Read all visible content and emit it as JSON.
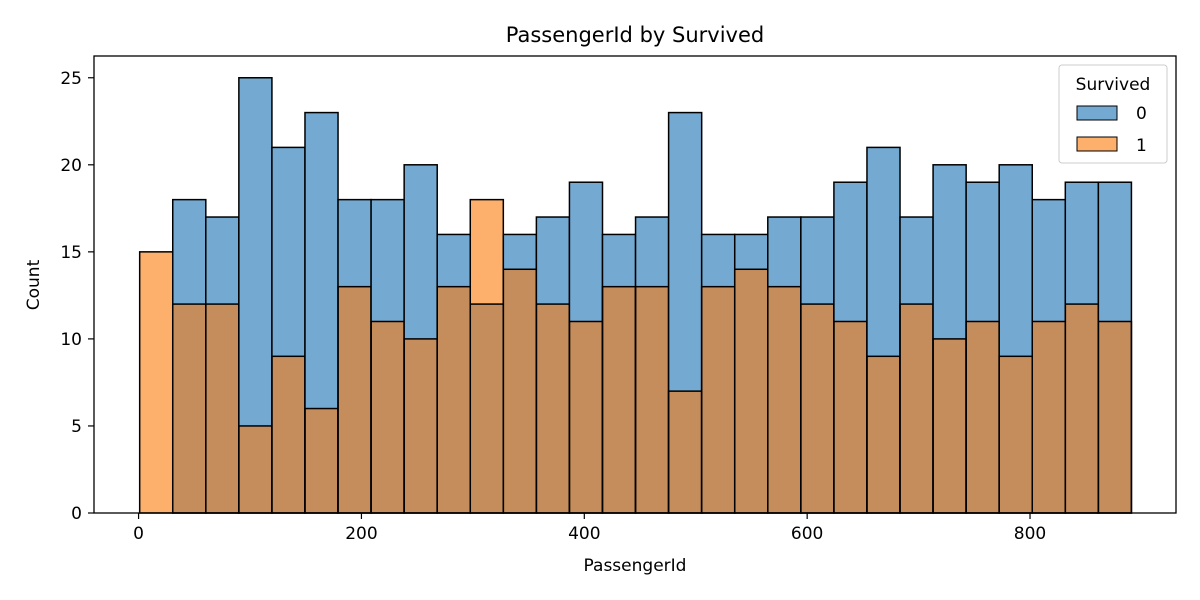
{
  "chart_data": {
    "type": "bar",
    "subtype": "overlaid-histogram",
    "title": "PassengerId by Survived",
    "xlabel": "PassengerId",
    "ylabel": "Count",
    "xlim": [
      -40,
      931
    ],
    "ylim": [
      0,
      26.25
    ],
    "xticks": [
      0,
      200,
      400,
      600,
      800
    ],
    "yticks": [
      0,
      5,
      10,
      15,
      20,
      25
    ],
    "bin_start": 1,
    "bin_width": 29.6667,
    "bins": 30,
    "grid": false,
    "legend": {
      "title": "Survived",
      "position": "top-right",
      "entries": [
        {
          "label": "0",
          "color": "#74aad2"
        },
        {
          "label": "1",
          "color": "#fdb06b"
        }
      ]
    },
    "overlap_color": "#c68d5c",
    "series": [
      {
        "name": "0",
        "color": "#74aad2",
        "values": [
          0,
          18,
          17,
          25,
          21,
          23,
          18,
          18,
          20,
          16,
          12,
          16,
          17,
          19,
          16,
          17,
          23,
          16,
          16,
          17,
          17,
          19,
          21,
          17,
          20,
          19,
          20,
          18,
          19,
          19
        ]
      },
      {
        "name": "1",
        "color": "#fdb06b",
        "values": [
          15,
          12,
          12,
          5,
          9,
          6,
          13,
          11,
          10,
          13,
          18,
          14,
          12,
          11,
          13,
          13,
          7,
          13,
          14,
          13,
          12,
          11,
          9,
          12,
          10,
          11,
          9,
          11,
          12,
          11
        ]
      }
    ]
  }
}
